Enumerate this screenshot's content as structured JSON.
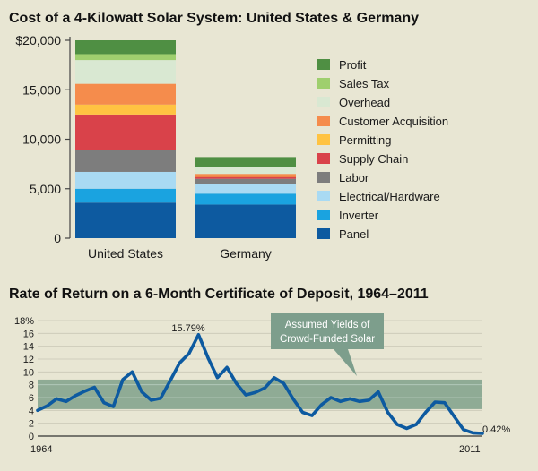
{
  "chart_data": [
    {
      "type": "bar",
      "stacked": true,
      "title": "Cost of a 4-Kilowatt Solar System: United States & Germany",
      "categories": [
        "United States",
        "Germany"
      ],
      "y_ticks": [
        "$20,000",
        "15,000",
        "10,000",
        "5,000",
        "0"
      ],
      "ylim": [
        0,
        20000
      ],
      "legend_position": "right",
      "series": [
        {
          "name": "Panel",
          "color": "#0d5aa0",
          "values": [
            3600,
            3400
          ]
        },
        {
          "name": "Inverter",
          "color": "#1aa3e0",
          "values": [
            1400,
            1100
          ]
        },
        {
          "name": "Electrical/Hardware",
          "color": "#a9daf3",
          "values": [
            1700,
            1000
          ]
        },
        {
          "name": "Labor",
          "color": "#7d7d7d",
          "values": [
            2200,
            500
          ]
        },
        {
          "name": "Supply Chain",
          "color": "#d9424a",
          "values": [
            3600,
            200
          ]
        },
        {
          "name": "Permitting",
          "color": "#ffc342",
          "values": [
            1000,
            100
          ]
        },
        {
          "name": "Customer Acquisition",
          "color": "#f58c4c",
          "values": [
            2100,
            200
          ]
        },
        {
          "name": "Overhead",
          "color": "#d9e8d2",
          "values": [
            2400,
            700
          ]
        },
        {
          "name": "Sales Tax",
          "color": "#9fcf6e",
          "values": [
            600,
            0
          ]
        },
        {
          "name": "Profit",
          "color": "#4f8f43",
          "values": [
            1400,
            1000
          ]
        }
      ]
    },
    {
      "type": "line",
      "title": "Rate of Return on a 6-Month Certificate of Deposit, 1964–2011",
      "xlim": [
        1964,
        2011
      ],
      "ylim": [
        0,
        18
      ],
      "y_ticks": [
        "18%",
        "16",
        "14",
        "12",
        "10",
        "8",
        "6",
        "4",
        "2",
        "0"
      ],
      "x_tick_labels": [
        "1964",
        "2011"
      ],
      "grid": true,
      "line_color": "#0d5aa0",
      "band": {
        "low": 4.2,
        "high": 8.8,
        "color": "#7fa08a"
      },
      "annotations": {
        "peak": "15.79%",
        "end": "0.42%"
      },
      "callout": {
        "line1": "Assumed Yields of",
        "line2": "Crowd-Funded Solar",
        "color": "#7d9e8c"
      },
      "series": [
        {
          "name": "",
          "x": [
            1964,
            1965,
            1966,
            1967,
            1968,
            1969,
            1970,
            1971,
            1972,
            1973,
            1974,
            1975,
            1976,
            1977,
            1978,
            1979,
            1980,
            1981,
            1982,
            1983,
            1984,
            1985,
            1986,
            1987,
            1988,
            1989,
            1990,
            1991,
            1992,
            1993,
            1994,
            1995,
            1996,
            1997,
            1998,
            1999,
            2000,
            2001,
            2002,
            2003,
            2004,
            2005,
            2006,
            2007,
            2008,
            2009,
            2010,
            2011
          ],
          "y": [
            4.0,
            4.7,
            5.8,
            5.4,
            6.3,
            7.0,
            7.6,
            5.2,
            4.6,
            8.8,
            10.0,
            6.9,
            5.6,
            5.9,
            8.6,
            11.4,
            12.9,
            15.79,
            12.2,
            9.1,
            10.7,
            8.2,
            6.4,
            6.8,
            7.5,
            9.1,
            8.2,
            5.8,
            3.7,
            3.2,
            4.9,
            6.0,
            5.4,
            5.8,
            5.4,
            5.6,
            6.9,
            3.7,
            1.8,
            1.2,
            1.8,
            3.7,
            5.3,
            5.2,
            3.1,
            1.0,
            0.5,
            0.42
          ]
        }
      ]
    }
  ]
}
